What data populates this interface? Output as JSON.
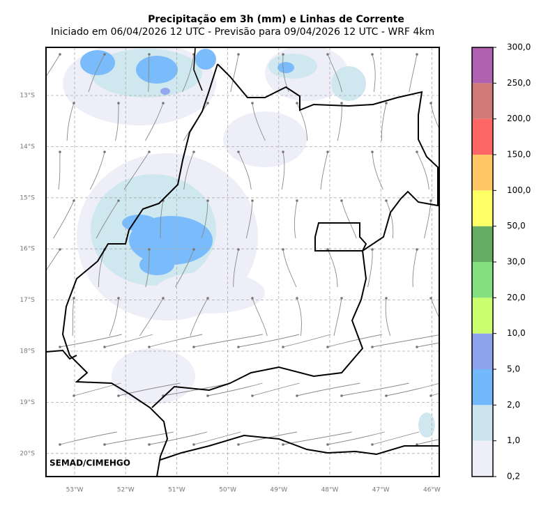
{
  "header": {
    "title": "Precipitação em 3h (mm) e Linhas de Corrente",
    "subtitle": "Iniciado em 06/04/2026 12 UTC - Previsão para 09/04/2026 12 UTC - WRF 4km"
  },
  "map": {
    "credit": "SEMAD/CIMEHGO",
    "lat_labels": [
      "13°S",
      "14°S",
      "15°S",
      "16°S",
      "17°S",
      "18°S",
      "19°S",
      "20°S"
    ],
    "lon_labels": [
      "53°W",
      "52°W",
      "51°W",
      "50°W",
      "49°W",
      "48°W",
      "47°W",
      "46°W"
    ]
  },
  "colorbar": {
    "labels": [
      "0,2",
      "1,0",
      "2,0",
      "5,0",
      "10,0",
      "20,0",
      "30,0",
      "50,0",
      "100,0",
      "150,0",
      "200,0",
      "250,0",
      "300,0"
    ],
    "colors": [
      "#eeeef9",
      "#cde6ee",
      "#72b8fb",
      "#8ea3ee",
      "#ccff70",
      "#84e07e",
      "#66ad63",
      "#ffff66",
      "#ffc766",
      "#ff6666",
      "#cf7a76",
      "#b062b0"
    ]
  }
}
